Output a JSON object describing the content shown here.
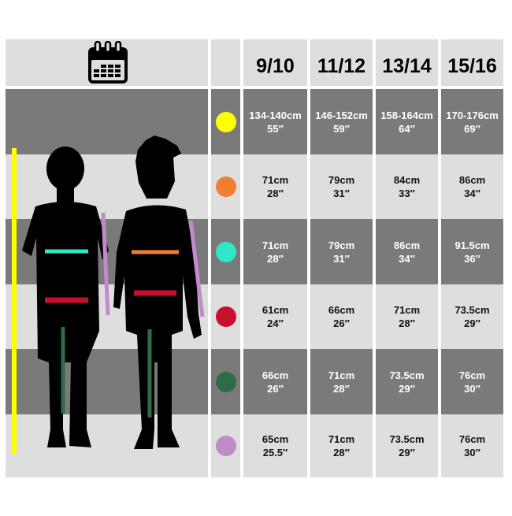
{
  "header": {
    "icon": "calendar-icon",
    "sizes": [
      "9/10",
      "11/12",
      "13/14",
      "15/16"
    ]
  },
  "rows": [
    {
      "marker_color": "#ffff00",
      "values": [
        [
          "134-140cm",
          "55″"
        ],
        [
          "146-152cm",
          "59″"
        ],
        [
          "158-164cm",
          "64″"
        ],
        [
          "170-176cm",
          "69″"
        ]
      ]
    },
    {
      "marker_color": "#f07f30",
      "values": [
        [
          "71cm",
          "28″"
        ],
        [
          "79cm",
          "31″"
        ],
        [
          "84cm",
          "33″"
        ],
        [
          "86cm",
          "34″"
        ]
      ]
    },
    {
      "marker_color": "#2ee8c8",
      "values": [
        [
          "71cm",
          "28″"
        ],
        [
          "79cm",
          "31″"
        ],
        [
          "86cm",
          "34″"
        ],
        [
          "91.5cm",
          "36″"
        ]
      ]
    },
    {
      "marker_color": "#c8102e",
      "values": [
        [
          "61cm",
          "24″"
        ],
        [
          "66cm",
          "26″"
        ],
        [
          "71cm",
          "28″"
        ],
        [
          "73.5cm",
          "29″"
        ]
      ]
    },
    {
      "marker_color": "#2e6b46",
      "values": [
        [
          "66cm",
          "26″"
        ],
        [
          "71cm",
          "28″"
        ],
        [
          "73.5cm",
          "29″"
        ],
        [
          "76cm",
          "30″"
        ]
      ]
    },
    {
      "marker_color": "#c08cc8",
      "values": [
        [
          "65cm",
          "25.5″"
        ],
        [
          "71cm",
          "28″"
        ],
        [
          "73.5cm",
          "29″"
        ],
        [
          "76cm",
          "30″"
        ]
      ]
    }
  ],
  "colors": {
    "light_band": "#dedede",
    "dark_band": "#7a7a7a"
  }
}
